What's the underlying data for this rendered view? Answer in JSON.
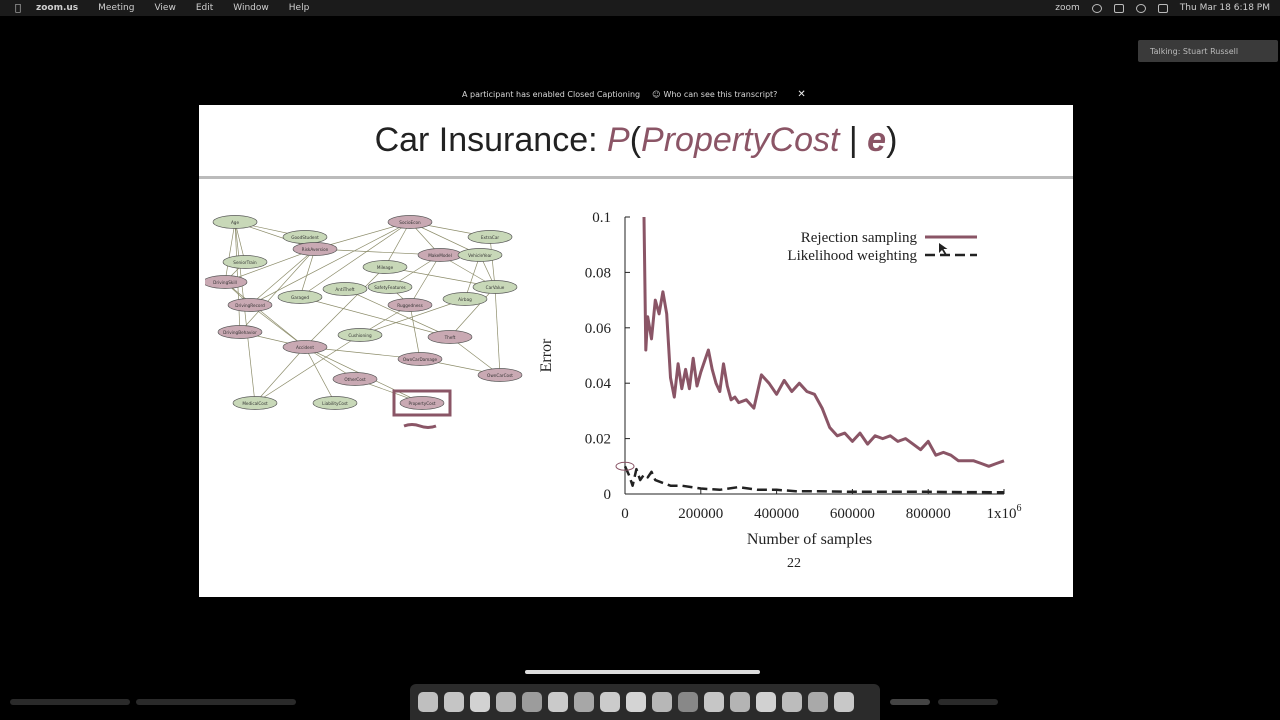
{
  "menubar": {
    "app": "zoom.us",
    "items": [
      "Meeting",
      "View",
      "Edit",
      "Window",
      "Help"
    ],
    "status_app": "zoom",
    "datetime": "Thu Mar 18  6:18 PM"
  },
  "talking": "Talking: Stuart Russell",
  "caption_bar": {
    "notice": "A participant has enabled Closed Captioning",
    "link": "Who can see this transcript?",
    "close": "✕"
  },
  "slide": {
    "title_prefix": "Car Insurance: ",
    "title_p": "P",
    "title_paren_open": "(",
    "title_var": "PropertyCost",
    "title_bar": " | ",
    "title_e": "e",
    "title_paren_close": ")",
    "page_number": "22"
  },
  "network": {
    "nodes": [
      {
        "label": "Age",
        "color": "#c8d8b8"
      },
      {
        "label": "GoodStudent",
        "color": "#c8d8b8"
      },
      {
        "label": "SocioEcon",
        "color": "#c9a9b3"
      },
      {
        "label": "ExtraCar",
        "color": "#c8d8b8"
      },
      {
        "label": "RiskAversion",
        "color": "#c9a9b3"
      },
      {
        "label": "SeniorTrain",
        "color": "#c8d8b8"
      },
      {
        "label": "Mileage",
        "color": "#c8d8b8"
      },
      {
        "label": "MakeModel",
        "color": "#c9a9b3"
      },
      {
        "label": "VehicleYear",
        "color": "#c8d8b8"
      },
      {
        "label": "DrivingSkill",
        "color": "#c9a9b3"
      },
      {
        "label": "AntiTheft",
        "color": "#c8d8b8"
      },
      {
        "label": "Garaged",
        "color": "#c8d8b8"
      },
      {
        "label": "SafetyFeatures",
        "color": "#c8d8b8"
      },
      {
        "label": "Airbag",
        "color": "#c8d8b8"
      },
      {
        "label": "CarValue",
        "color": "#c8d8b8"
      },
      {
        "label": "DrivingRecord",
        "color": "#c9a9b3"
      },
      {
        "label": "Ruggedness",
        "color": "#c9a9b3"
      },
      {
        "label": "DrivingBehavior",
        "color": "#c9a9b3"
      },
      {
        "label": "Cushioning",
        "color": "#c8d8b8"
      },
      {
        "label": "Theft",
        "color": "#c9a9b3"
      },
      {
        "label": "Accident",
        "color": "#c9a9b3"
      },
      {
        "label": "OwnCarDamage",
        "color": "#c9a9b3"
      },
      {
        "label": "OtherCost",
        "color": "#c9a9b3"
      },
      {
        "label": "OwnCarCost",
        "color": "#c9a9b3"
      },
      {
        "label": "MedicalCost",
        "color": "#c8d8b8"
      },
      {
        "label": "LiabilityCost",
        "color": "#c8d8b8"
      },
      {
        "label": "PropertyCost",
        "color": "#c9a9b3"
      }
    ]
  },
  "chart_data": {
    "type": "line",
    "xlabel": "Number of samples",
    "ylabel": "Error",
    "xlim": [
      0,
      1000000
    ],
    "ylim": [
      0,
      0.1
    ],
    "x_ticks": [
      "0",
      "200000",
      "400000",
      "600000",
      "800000",
      "1x10"
    ],
    "x_tick_superscript": "6",
    "y_ticks": [
      "0",
      "0.02",
      "0.04",
      "0.06",
      "0.08",
      "0.1"
    ],
    "legend_position": "top-right",
    "series": [
      {
        "name": "Rejection sampling",
        "style": "solid",
        "color": "#8a5566",
        "x": [
          50000,
          55000,
          60000,
          70000,
          80000,
          90000,
          100000,
          110000,
          120000,
          130000,
          140000,
          150000,
          160000,
          170000,
          180000,
          190000,
          200000,
          210000,
          220000,
          230000,
          240000,
          250000,
          260000,
          270000,
          280000,
          290000,
          300000,
          320000,
          340000,
          360000,
          380000,
          400000,
          420000,
          440000,
          460000,
          480000,
          500000,
          520000,
          540000,
          560000,
          580000,
          600000,
          620000,
          640000,
          660000,
          680000,
          700000,
          720000,
          740000,
          760000,
          780000,
          800000,
          820000,
          840000,
          860000,
          880000,
          900000,
          920000,
          940000,
          960000,
          980000,
          1000000
        ],
        "y": [
          0.1,
          0.052,
          0.064,
          0.056,
          0.07,
          0.065,
          0.073,
          0.065,
          0.042,
          0.035,
          0.047,
          0.038,
          0.045,
          0.038,
          0.049,
          0.039,
          0.044,
          0.048,
          0.052,
          0.045,
          0.04,
          0.037,
          0.047,
          0.039,
          0.034,
          0.035,
          0.033,
          0.034,
          0.031,
          0.043,
          0.04,
          0.036,
          0.041,
          0.037,
          0.04,
          0.037,
          0.036,
          0.031,
          0.024,
          0.021,
          0.022,
          0.019,
          0.022,
          0.018,
          0.021,
          0.02,
          0.021,
          0.019,
          0.02,
          0.018,
          0.016,
          0.019,
          0.014,
          0.015,
          0.014,
          0.012,
          0.012,
          0.012,
          0.011,
          0.01,
          0.011,
          0.012
        ]
      },
      {
        "name": "Likelihood weighting",
        "style": "dashed",
        "color": "#222222",
        "x": [
          0,
          10000,
          20000,
          30000,
          40000,
          50000,
          60000,
          70000,
          80000,
          100000,
          120000,
          150000,
          200000,
          250000,
          300000,
          350000,
          400000,
          450000,
          500000,
          600000,
          700000,
          800000,
          900000,
          1000000
        ],
        "y": [
          0.01,
          0.007,
          0.003,
          0.009,
          0.005,
          0.007,
          0.006,
          0.008,
          0.005,
          0.004,
          0.003,
          0.003,
          0.002,
          0.0015,
          0.0025,
          0.0015,
          0.0015,
          0.001,
          0.001,
          0.0008,
          0.0008,
          0.0008,
          0.0007,
          0.0006
        ]
      }
    ]
  }
}
